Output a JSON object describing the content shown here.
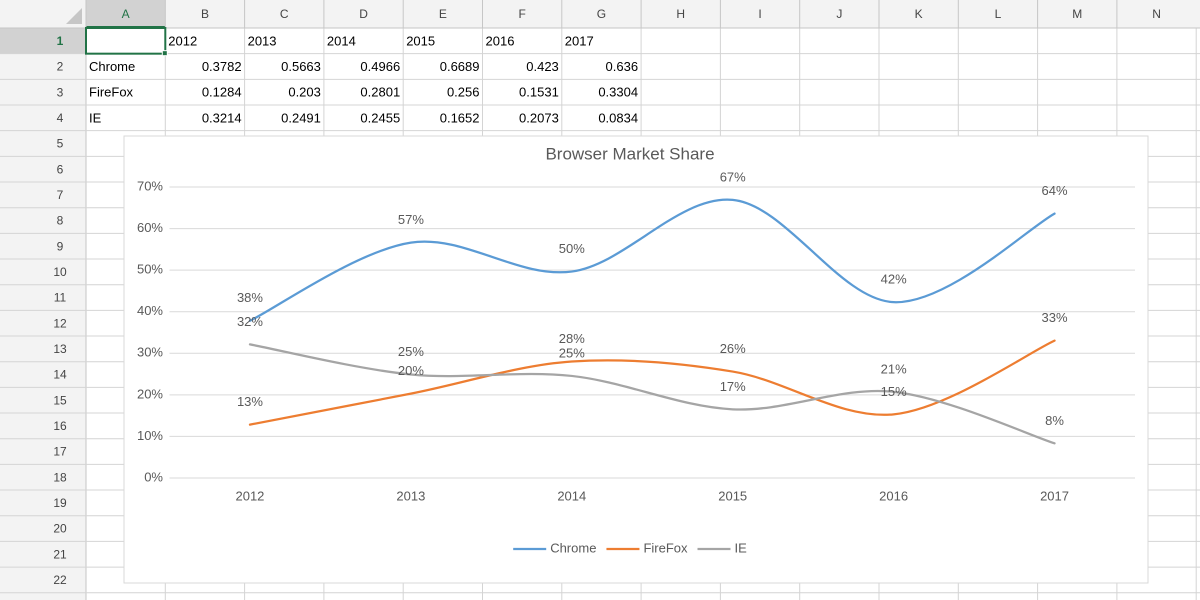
{
  "sheet": {
    "columns": [
      "A",
      "B",
      "C",
      "D",
      "E",
      "F",
      "G",
      "H",
      "I",
      "J",
      "K",
      "L",
      "M",
      "N"
    ],
    "rows": [
      "1",
      "2",
      "3",
      "4",
      "5",
      "6",
      "7",
      "8",
      "9",
      "10",
      "11",
      "12",
      "13",
      "14",
      "15",
      "16",
      "17",
      "18",
      "19",
      "20",
      "21",
      "22"
    ],
    "header": [
      "2012",
      "2013",
      "2014",
      "2015",
      "2016",
      "2017"
    ],
    "data": [
      {
        "name": "Chrome",
        "values": [
          0.3782,
          0.5663,
          0.4966,
          0.6689,
          0.423,
          0.636
        ]
      },
      {
        "name": "FireFox",
        "values": [
          0.1284,
          0.203,
          0.2801,
          0.256,
          0.1531,
          0.3304
        ]
      },
      {
        "name": "IE",
        "values": [
          0.3214,
          0.2491,
          0.2455,
          0.1652,
          0.2073,
          0.0834
        ]
      }
    ]
  },
  "chart_data": {
    "type": "line",
    "title": "Browser Market Share",
    "categories": [
      "2012",
      "2013",
      "2014",
      "2015",
      "2016",
      "2017"
    ],
    "series": [
      {
        "name": "Chrome",
        "color": "#5b9bd5",
        "values": [
          37.82,
          56.63,
          49.66,
          66.89,
          42.3,
          63.6
        ],
        "value_labels": [
          "38%",
          "57%",
          "50%",
          "67%",
          "42%",
          "64%"
        ]
      },
      {
        "name": "FireFox",
        "color": "#ed7d31",
        "values": [
          12.84,
          20.3,
          28.01,
          25.6,
          15.31,
          33.04
        ],
        "value_labels": [
          "13%",
          "20%",
          "28%",
          "26%",
          "15%",
          "33%"
        ]
      },
      {
        "name": "IE",
        "color": "#a5a5a5",
        "values": [
          32.14,
          24.91,
          24.55,
          16.52,
          20.73,
          8.34
        ],
        "value_labels": [
          "32%",
          "25%",
          "25%",
          "17%",
          "21%",
          "8%"
        ]
      }
    ],
    "ylim": [
      0,
      70
    ],
    "yticks": [
      {
        "value": 0,
        "label": "0%"
      },
      {
        "value": 10,
        "label": "10%"
      },
      {
        "value": 20,
        "label": "20%"
      },
      {
        "value": 30,
        "label": "30%"
      },
      {
        "value": 40,
        "label": "40%"
      },
      {
        "value": 50,
        "label": "50%"
      },
      {
        "value": 60,
        "label": "60%"
      },
      {
        "value": 70,
        "label": "70%"
      }
    ],
    "grid": true,
    "smooth": true,
    "legend": "bottom"
  }
}
